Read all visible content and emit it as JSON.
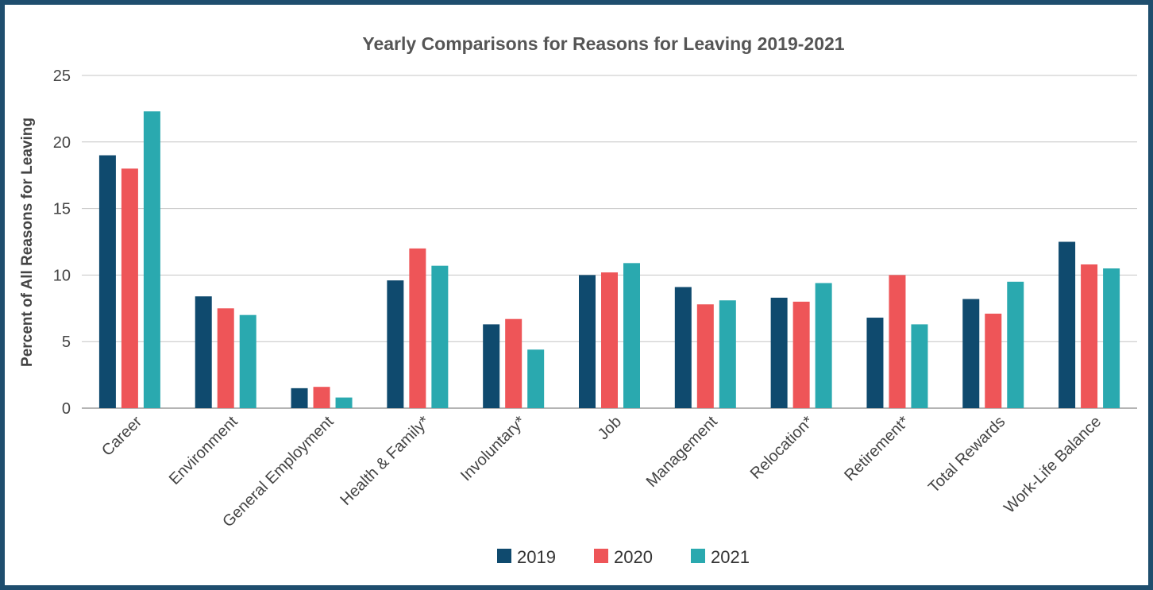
{
  "chart_data": {
    "type": "bar",
    "title": "Yearly Comparisons for Reasons for Leaving 2019-2021",
    "ylabel": "Percent of All Reasons for Leaving",
    "xlabel": "",
    "ylim": [
      0,
      25
    ],
    "yticks": [
      "0",
      "5",
      "10",
      "15",
      "20",
      "25"
    ],
    "grid": true,
    "legend_position": "bottom",
    "categories": [
      "Career",
      "Environment",
      "General Employment",
      "Health & Family*",
      "Involuntary*",
      "Job",
      "Management",
      "Relocation*",
      "Retirement*",
      "Total Rewards",
      "Work-Life Balance"
    ],
    "series": [
      {
        "name": "2019",
        "color": "#0f4a6e",
        "values": [
          19.0,
          8.4,
          1.5,
          9.6,
          6.3,
          10.0,
          9.1,
          8.3,
          6.8,
          8.2,
          12.5
        ]
      },
      {
        "name": "2020",
        "color": "#ee5558",
        "values": [
          18.0,
          7.5,
          1.6,
          12.0,
          6.7,
          10.2,
          7.8,
          8.0,
          10.0,
          7.1,
          10.8
        ]
      },
      {
        "name": "2021",
        "color": "#2aa9af",
        "values": [
          22.3,
          7.0,
          0.8,
          10.7,
          4.4,
          10.9,
          8.1,
          9.4,
          6.3,
          9.5,
          10.5
        ]
      }
    ]
  }
}
